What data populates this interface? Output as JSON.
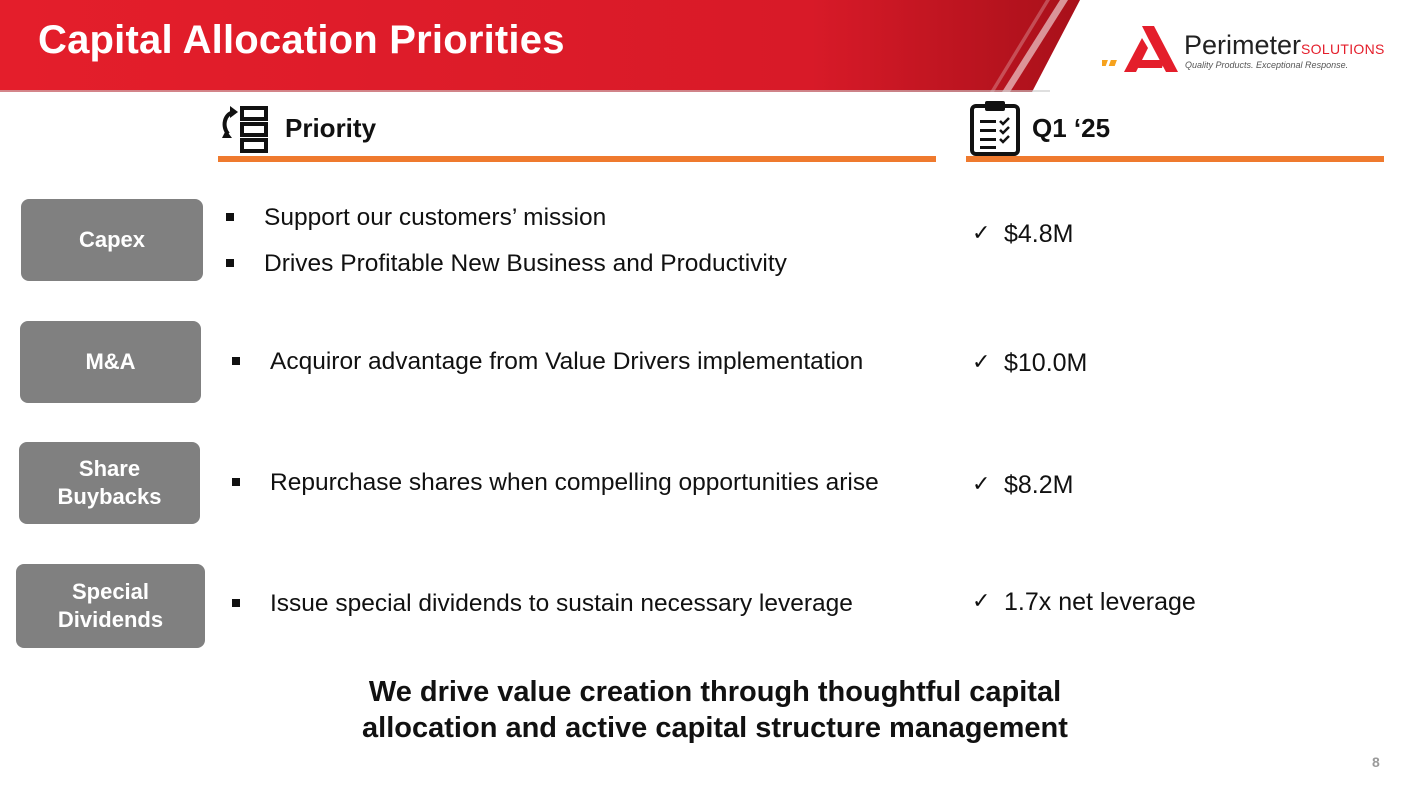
{
  "header": {
    "title": "Capital Allocation Priorities",
    "colors": {
      "red": "#e41e2b",
      "dark_red": "#b5121b",
      "accent_orange": "#ef7a2e",
      "pill_gray": "#808080"
    }
  },
  "logo": {
    "name": "Perimeter",
    "suffix": "SOLUTIONS",
    "tagline": "Quality Products. Exceptional Response."
  },
  "columns": {
    "priority": {
      "label": "Priority",
      "icon": "priority-reorder-icon"
    },
    "quarter": {
      "label": "Q1 ‘25",
      "icon": "clipboard-checklist-icon"
    }
  },
  "rows": [
    {
      "category": "Capex",
      "bullets": [
        "Support our customers’ mission",
        "Drives Profitable New Business and Productivity"
      ],
      "result": "$4.8M"
    },
    {
      "category": "M&A",
      "bullets": [
        "Acquiror advantage from Value Drivers implementation"
      ],
      "result": "$10.0M"
    },
    {
      "category": "Share\nBuybacks",
      "bullets": [
        "Repurchase shares when compelling opportunities arise"
      ],
      "result": "$8.2M"
    },
    {
      "category": "Special\nDividends",
      "bullets": [
        "Issue special dividends to sustain necessary leverage"
      ],
      "result": "1.7x net leverage"
    }
  ],
  "check_symbol": "✓",
  "tagline": "We drive value creation through thoughtful capital allocation and active capital structure management",
  "page_number": "8"
}
